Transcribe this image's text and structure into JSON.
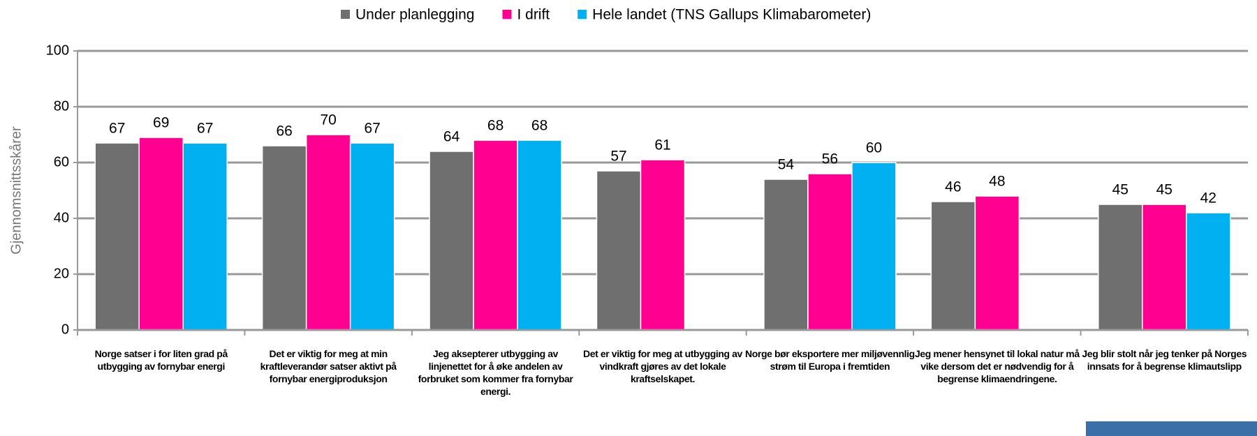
{
  "chart_data": {
    "type": "bar",
    "y_label": "Gjennomsnittsskårer",
    "categories": [
      "Norge satser i for liten grad på utbygging av fornybar energi",
      "Det er viktig for meg at min kraftleverandør satser aktivt på fornybar energiproduksjon",
      "Jeg aksepterer utbygging av linjenettet for å øke andelen av forbruket som kommer fra fornybar energi.",
      "Det er viktig for meg at utbygging av vindkraft gjøres av det lokale kraftselskapet.",
      "Norge bør eksportere mer miljøvennlig strøm til Europa i fremtiden",
      "Jeg mener hensynet til lokal natur må vike dersom det er nødvendig for å begrense klimaendringene.",
      "Jeg blir stolt når jeg tenker på Norges innsats for å begrense klimautslipp"
    ],
    "series": [
      {
        "name": "Under planlegging",
        "color": "#6f6f6f",
        "values": [
          67,
          66,
          64,
          57,
          54,
          46,
          45
        ]
      },
      {
        "name": "I drift",
        "color": "#ff0090",
        "values": [
          69,
          70,
          68,
          61,
          56,
          48,
          45
        ]
      },
      {
        "name": "Hele landet (TNS Gallups Klimabarometer)",
        "color": "#00b0f0",
        "values": [
          67,
          67,
          68,
          null,
          60,
          null,
          42
        ]
      }
    ],
    "ylim": [
      0,
      100
    ],
    "yticks": [
      0,
      20,
      40,
      60,
      80,
      100
    ],
    "grid": true,
    "legend": "top"
  }
}
